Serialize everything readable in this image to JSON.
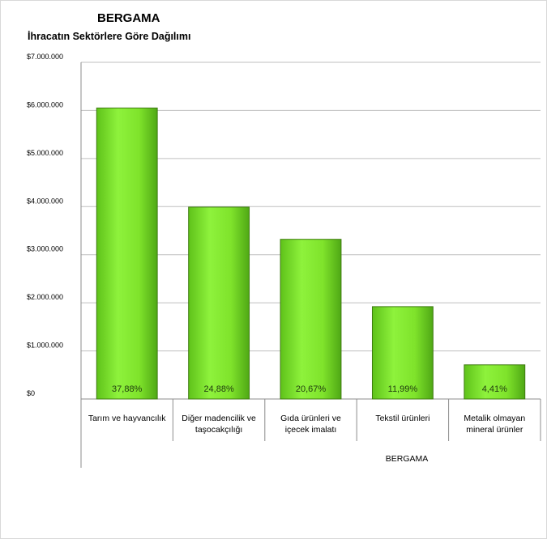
{
  "chart_data": {
    "type": "bar",
    "title": "BERGAMA",
    "subtitle": "İhracatın Sektörlere Göre Dağılımı",
    "categories": [
      [
        "Tarım ve hayvancılık"
      ],
      [
        "Diğer madencilik ve",
        "taşocakçılığı"
      ],
      [
        "Gıda ürünleri ve",
        "içecek imalatı"
      ],
      [
        "Tekstil ürünleri"
      ],
      [
        "Metalik olmayan",
        "mineral ürünler"
      ]
    ],
    "values": [
      6050000,
      3990000,
      3320000,
      1920000,
      710000
    ],
    "data_labels": [
      "37,88%",
      "24,88%",
      "20,67%",
      "11,99%",
      "4,41%"
    ],
    "y_ticks": [
      "$0",
      "$1.000.000",
      "$2.000.000",
      "$3.000.000",
      "$4.000.000",
      "$5.000.000",
      "$6.000.000",
      "$7.000.000"
    ],
    "ylim": [
      0,
      7000000
    ],
    "xlabel": "BERGAMA",
    "ylabel": "",
    "grid": true,
    "bar_color": "#7fe32b",
    "bar_edge": "#3e7a10"
  }
}
